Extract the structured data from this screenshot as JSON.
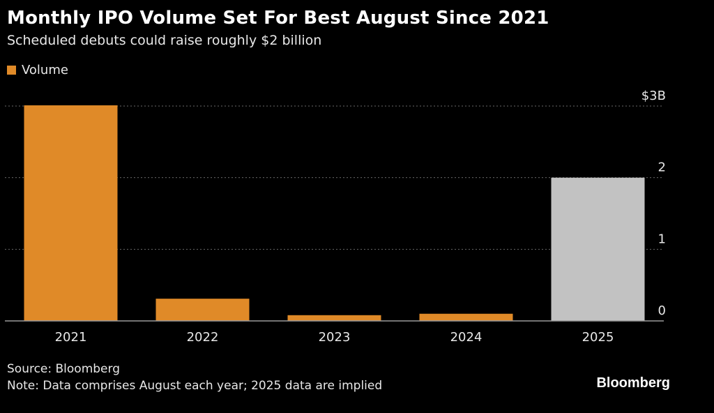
{
  "chart_data": {
    "type": "bar",
    "title": "Monthly IPO Volume Set For Best August Since 2021",
    "subtitle": "Scheduled debuts could raise roughly $2 billion",
    "categories": [
      "2021",
      "2022",
      "2023",
      "2024",
      "2025"
    ],
    "series": [
      {
        "name": "Volume",
        "values": [
          3.01,
          0.31,
          0.08,
          0.1,
          2.0
        ],
        "colors": [
          "#e08a28",
          "#e08a28",
          "#e08a28",
          "#e08a28",
          "#c2c2c2"
        ]
      }
    ],
    "ylim": [
      0,
      3
    ],
    "yticks": [
      0,
      1,
      2,
      3
    ],
    "ytick_labels": [
      "0",
      "1",
      "2",
      "$3B"
    ],
    "y_axis_side": "right",
    "grid": true,
    "legend": "top-left",
    "xlabel": "",
    "ylabel": ""
  },
  "legend_color": "#e08a28",
  "footer": {
    "source": "Source: Bloomberg",
    "note": "Note: Data comprises August each year; 2025 data are implied",
    "brand": "Bloomberg"
  }
}
